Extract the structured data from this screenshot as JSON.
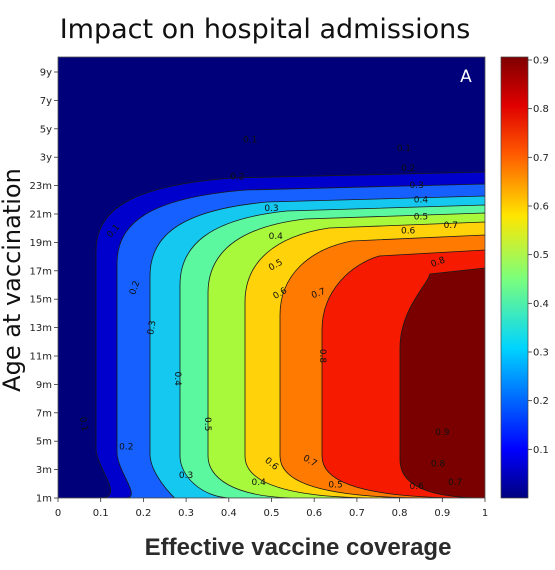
{
  "chart_data": {
    "type": "contour",
    "title": "Impact on hospital admissions",
    "panel_label": "A",
    "xlabel": "Effective vaccine coverage",
    "ylabel": "Age at vaccination",
    "x_ticks": [
      "0",
      "0.1",
      "0.2",
      "0.3",
      "0.4",
      "0.5",
      "0.6",
      "0.7",
      "0.8",
      "0.9",
      "1"
    ],
    "y_ticks": [
      "1m",
      "3m",
      "5m",
      "7m",
      "9m",
      "11m",
      "13m",
      "15m",
      "17m",
      "19m",
      "21m",
      "23m",
      "3y",
      "5y",
      "7y",
      "9y"
    ],
    "xlim": [
      0,
      1
    ],
    "colorbar": {
      "range": [
        0,
        0.9
      ],
      "ticks": [
        "0.1",
        "0.2",
        "0.3",
        "0.4",
        "0.5",
        "0.6",
        "0.7",
        "0.8",
        "0.9"
      ],
      "colormap": "jet"
    },
    "levels": [
      {
        "value": 0.1,
        "color": "#0000cc"
      },
      {
        "value": 0.2,
        "color": "#1560ff"
      },
      {
        "value": 0.3,
        "color": "#15c8f0"
      },
      {
        "value": 0.4,
        "color": "#5cf8a0"
      },
      {
        "value": 0.5,
        "color": "#a8f83c"
      },
      {
        "value": 0.6,
        "color": "#ffd20a"
      },
      {
        "value": 0.7,
        "color": "#ff7a00"
      },
      {
        "value": 0.8,
        "color": "#f51a00"
      },
      {
        "value": 0.9,
        "color": "#7a0000"
      }
    ],
    "background_color": "#00007a",
    "contour_labels": [
      {
        "text": "0.1",
        "x": 0.45,
        "y": 12.6,
        "rotate": 0
      },
      {
        "text": "0.1",
        "x": 0.13,
        "y": 9.4,
        "rotate": -50
      },
      {
        "text": "0.1",
        "x": 0.06,
        "y": 2.6,
        "rotate": 80
      },
      {
        "text": "0.1",
        "x": 0.81,
        "y": 12.3,
        "rotate": 0
      },
      {
        "text": "0.2",
        "x": 0.42,
        "y": 11.3,
        "rotate": 0
      },
      {
        "text": "0.2",
        "x": 0.18,
        "y": 7.4,
        "rotate": -70
      },
      {
        "text": "0.2",
        "x": 0.16,
        "y": 1.8,
        "rotate": 0
      },
      {
        "text": "0.2",
        "x": 0.82,
        "y": 11.6,
        "rotate": 0
      },
      {
        "text": "0.3",
        "x": 0.5,
        "y": 10.2,
        "rotate": 0
      },
      {
        "text": "0.3",
        "x": 0.22,
        "y": 6.0,
        "rotate": -80
      },
      {
        "text": "0.3",
        "x": 0.3,
        "y": 0.8,
        "rotate": 0
      },
      {
        "text": "0.3",
        "x": 0.84,
        "y": 11.0,
        "rotate": 0
      },
      {
        "text": "0.4",
        "x": 0.51,
        "y": 9.2,
        "rotate": 0
      },
      {
        "text": "0.4",
        "x": 0.28,
        "y": 4.2,
        "rotate": 90
      },
      {
        "text": "0.4",
        "x": 0.47,
        "y": 0.55,
        "rotate": 0
      },
      {
        "text": "0.4",
        "x": 0.85,
        "y": 10.5,
        "rotate": 0
      },
      {
        "text": "0.5",
        "x": 0.51,
        "y": 8.2,
        "rotate": -30
      },
      {
        "text": "0.5",
        "x": 0.35,
        "y": 2.6,
        "rotate": 90
      },
      {
        "text": "0.5",
        "x": 0.65,
        "y": 0.45,
        "rotate": 0
      },
      {
        "text": "0.5",
        "x": 0.85,
        "y": 9.9,
        "rotate": 0
      },
      {
        "text": "0.6",
        "x": 0.52,
        "y": 7.2,
        "rotate": -30
      },
      {
        "text": "0.6",
        "x": 0.5,
        "y": 1.2,
        "rotate": 40
      },
      {
        "text": "0.6",
        "x": 0.84,
        "y": 0.4,
        "rotate": 0
      },
      {
        "text": "0.6",
        "x": 0.82,
        "y": 9.4,
        "rotate": 0
      },
      {
        "text": "0.7",
        "x": 0.61,
        "y": 7.2,
        "rotate": -20
      },
      {
        "text": "0.7",
        "x": 0.59,
        "y": 1.3,
        "rotate": 30
      },
      {
        "text": "0.7",
        "x": 0.93,
        "y": 0.55,
        "rotate": 0
      },
      {
        "text": "0.7",
        "x": 0.92,
        "y": 9.6,
        "rotate": 0
      },
      {
        "text": "0.8",
        "x": 0.89,
        "y": 8.3,
        "rotate": -20
      },
      {
        "text": "0.8",
        "x": 0.89,
        "y": 1.2,
        "rotate": 0
      },
      {
        "text": "0.8",
        "x": 0.62,
        "y": 5.0,
        "rotate": 90
      },
      {
        "text": "0.9",
        "x": 0.9,
        "y": 2.3,
        "rotate": 0
      }
    ],
    "grid": false,
    "legend": "colorbar-right"
  }
}
